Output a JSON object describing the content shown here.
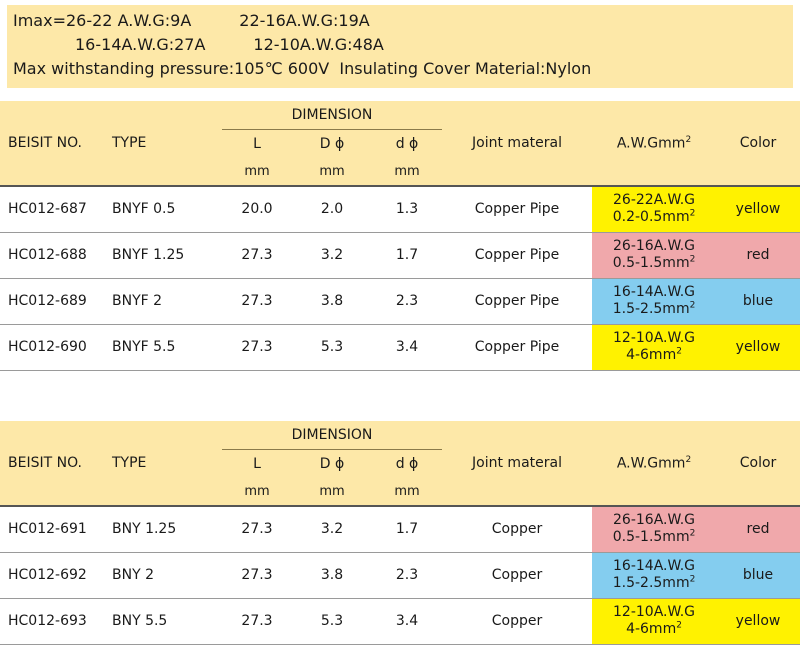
{
  "specs": {
    "line1a": "Imax=26-22 A.W.G:9A",
    "line1b": "22-16A.W.G:19A",
    "line2a": "16-14A.W.G:27A",
    "line2b": "12-10A.W.G:48A",
    "line3": "Max withstanding pressure:105℃ 600V  Insulating Cover Material:Nylon"
  },
  "header": {
    "beisit_no": "BEISIT NO.",
    "type": "TYPE",
    "dimension": "DIMENSION",
    "L": "L",
    "D": "D ϕ",
    "d": "d ϕ",
    "unit": "mm",
    "joint": "Joint materal",
    "awg": "A.W.Gmm",
    "awg_sup": "2",
    "color": "Color"
  },
  "table1": [
    {
      "no": "HC012-687",
      "type": "BNYF 0.5",
      "L": "20.0",
      "D": "2.0",
      "d": "1.3",
      "joint": "Copper Pipe",
      "awg1": "26-22A.W.G",
      "awg2": "0.2-0.5mm",
      "sup": "2",
      "color": "yellow",
      "color_hex": "#fff200"
    },
    {
      "no": "HC012-688",
      "type": "BNYF 1.25",
      "L": "27.3",
      "D": "3.2",
      "d": "1.7",
      "joint": "Copper Pipe",
      "awg1": "26-16A.W.G",
      "awg2": "0.5-1.5mm",
      "sup": "2",
      "color": "red",
      "color_hex": "#f0a8ab"
    },
    {
      "no": "HC012-689",
      "type": "BNYF 2",
      "L": "27.3",
      "D": "3.8",
      "d": "2.3",
      "joint": "Copper Pipe",
      "awg1": "16-14A.W.G",
      "awg2": "1.5-2.5mm",
      "sup": "2",
      "color": "blue",
      "color_hex": "#84cdef"
    },
    {
      "no": "HC012-690",
      "type": "BNYF 5.5",
      "L": "27.3",
      "D": "5.3",
      "d": "3.4",
      "joint": "Copper Pipe",
      "awg1": "12-10A.W.G",
      "awg2": "4-6mm",
      "sup": "2",
      "color": "yellow",
      "color_hex": "#fff200"
    }
  ],
  "table2": [
    {
      "no": "HC012-691",
      "type": "BNY 1.25",
      "L": "27.3",
      "D": "3.2",
      "d": "1.7",
      "joint": "Copper",
      "awg1": "26-16A.W.G",
      "awg2": "0.5-1.5mm",
      "sup": "2",
      "color": "red",
      "color_hex": "#f0a8ab"
    },
    {
      "no": "HC012-692",
      "type": "BNY 2",
      "L": "27.3",
      "D": "3.8",
      "d": "2.3",
      "joint": "Copper",
      "awg1": "16-14A.W.G",
      "awg2": "1.5-2.5mm",
      "sup": "2",
      "color": "blue",
      "color_hex": "#84cdef"
    },
    {
      "no": "HC012-693",
      "type": "BNY 5.5",
      "L": "27.3",
      "D": "5.3",
      "d": "3.4",
      "joint": "Copper",
      "awg1": "12-10A.W.G",
      "awg2": "4-6mm",
      "sup": "2",
      "color": "yellow",
      "color_hex": "#fff200"
    }
  ]
}
